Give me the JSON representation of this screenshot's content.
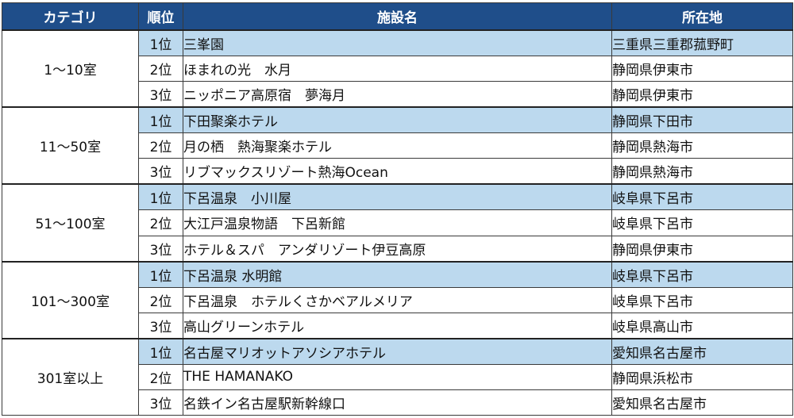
{
  "headers": {
    "category": "カテゴリ",
    "rank": "順位",
    "facility": "施設名",
    "location": "所在地"
  },
  "groups": [
    {
      "category": "1～10室",
      "rows": [
        {
          "rank": "1位",
          "name": "三峯園",
          "location": "三重県三重郡菰野町"
        },
        {
          "rank": "2位",
          "name": "ほまれの光　水月",
          "location": "静岡県伊東市"
        },
        {
          "rank": "3位",
          "name": "ニッポニア高原宿　夢海月",
          "location": "静岡県伊東市"
        }
      ]
    },
    {
      "category": "11～50室",
      "rows": [
        {
          "rank": "1位",
          "name": "下田聚楽ホテル",
          "location": "静岡県下田市"
        },
        {
          "rank": "2位",
          "name": "月の栖　熱海聚楽ホテル",
          "location": "静岡県熱海市"
        },
        {
          "rank": "3位",
          "name": "リブマックスリゾート熱海Ocean",
          "location": "静岡県熱海市"
        }
      ]
    },
    {
      "category": "51～100室",
      "rows": [
        {
          "rank": "1位",
          "name": "下呂温泉　小川屋",
          "location": "岐阜県下呂市"
        },
        {
          "rank": "2位",
          "name": "大江戸温泉物語　下呂新館",
          "location": "岐阜県下呂市"
        },
        {
          "rank": "3位",
          "name": "ホテル＆スパ　アンダリゾート伊豆高原",
          "location": "静岡県伊東市"
        }
      ]
    },
    {
      "category": "101～300室",
      "rows": [
        {
          "rank": "1位",
          "name": "下呂温泉 水明館",
          "location": "岐阜県下呂市"
        },
        {
          "rank": "2位",
          "name": "下呂温泉　ホテルくさかベアルメリア",
          "location": "岐阜県下呂市"
        },
        {
          "rank": "3位",
          "name": "高山グリーンホテル",
          "location": "岐阜県高山市"
        }
      ]
    },
    {
      "category": "301室以上",
      "rows": [
        {
          "rank": "1位",
          "name": "名古屋マリオットアソシアホテル",
          "location": "愛知県名古屋市"
        },
        {
          "rank": "2位",
          "name": "THE HAMANAKO",
          "location": "静岡県浜松市"
        },
        {
          "rank": "3位",
          "name": "名鉄イン名古屋駅新幹線口",
          "location": "愛知県名古屋市"
        }
      ]
    }
  ]
}
